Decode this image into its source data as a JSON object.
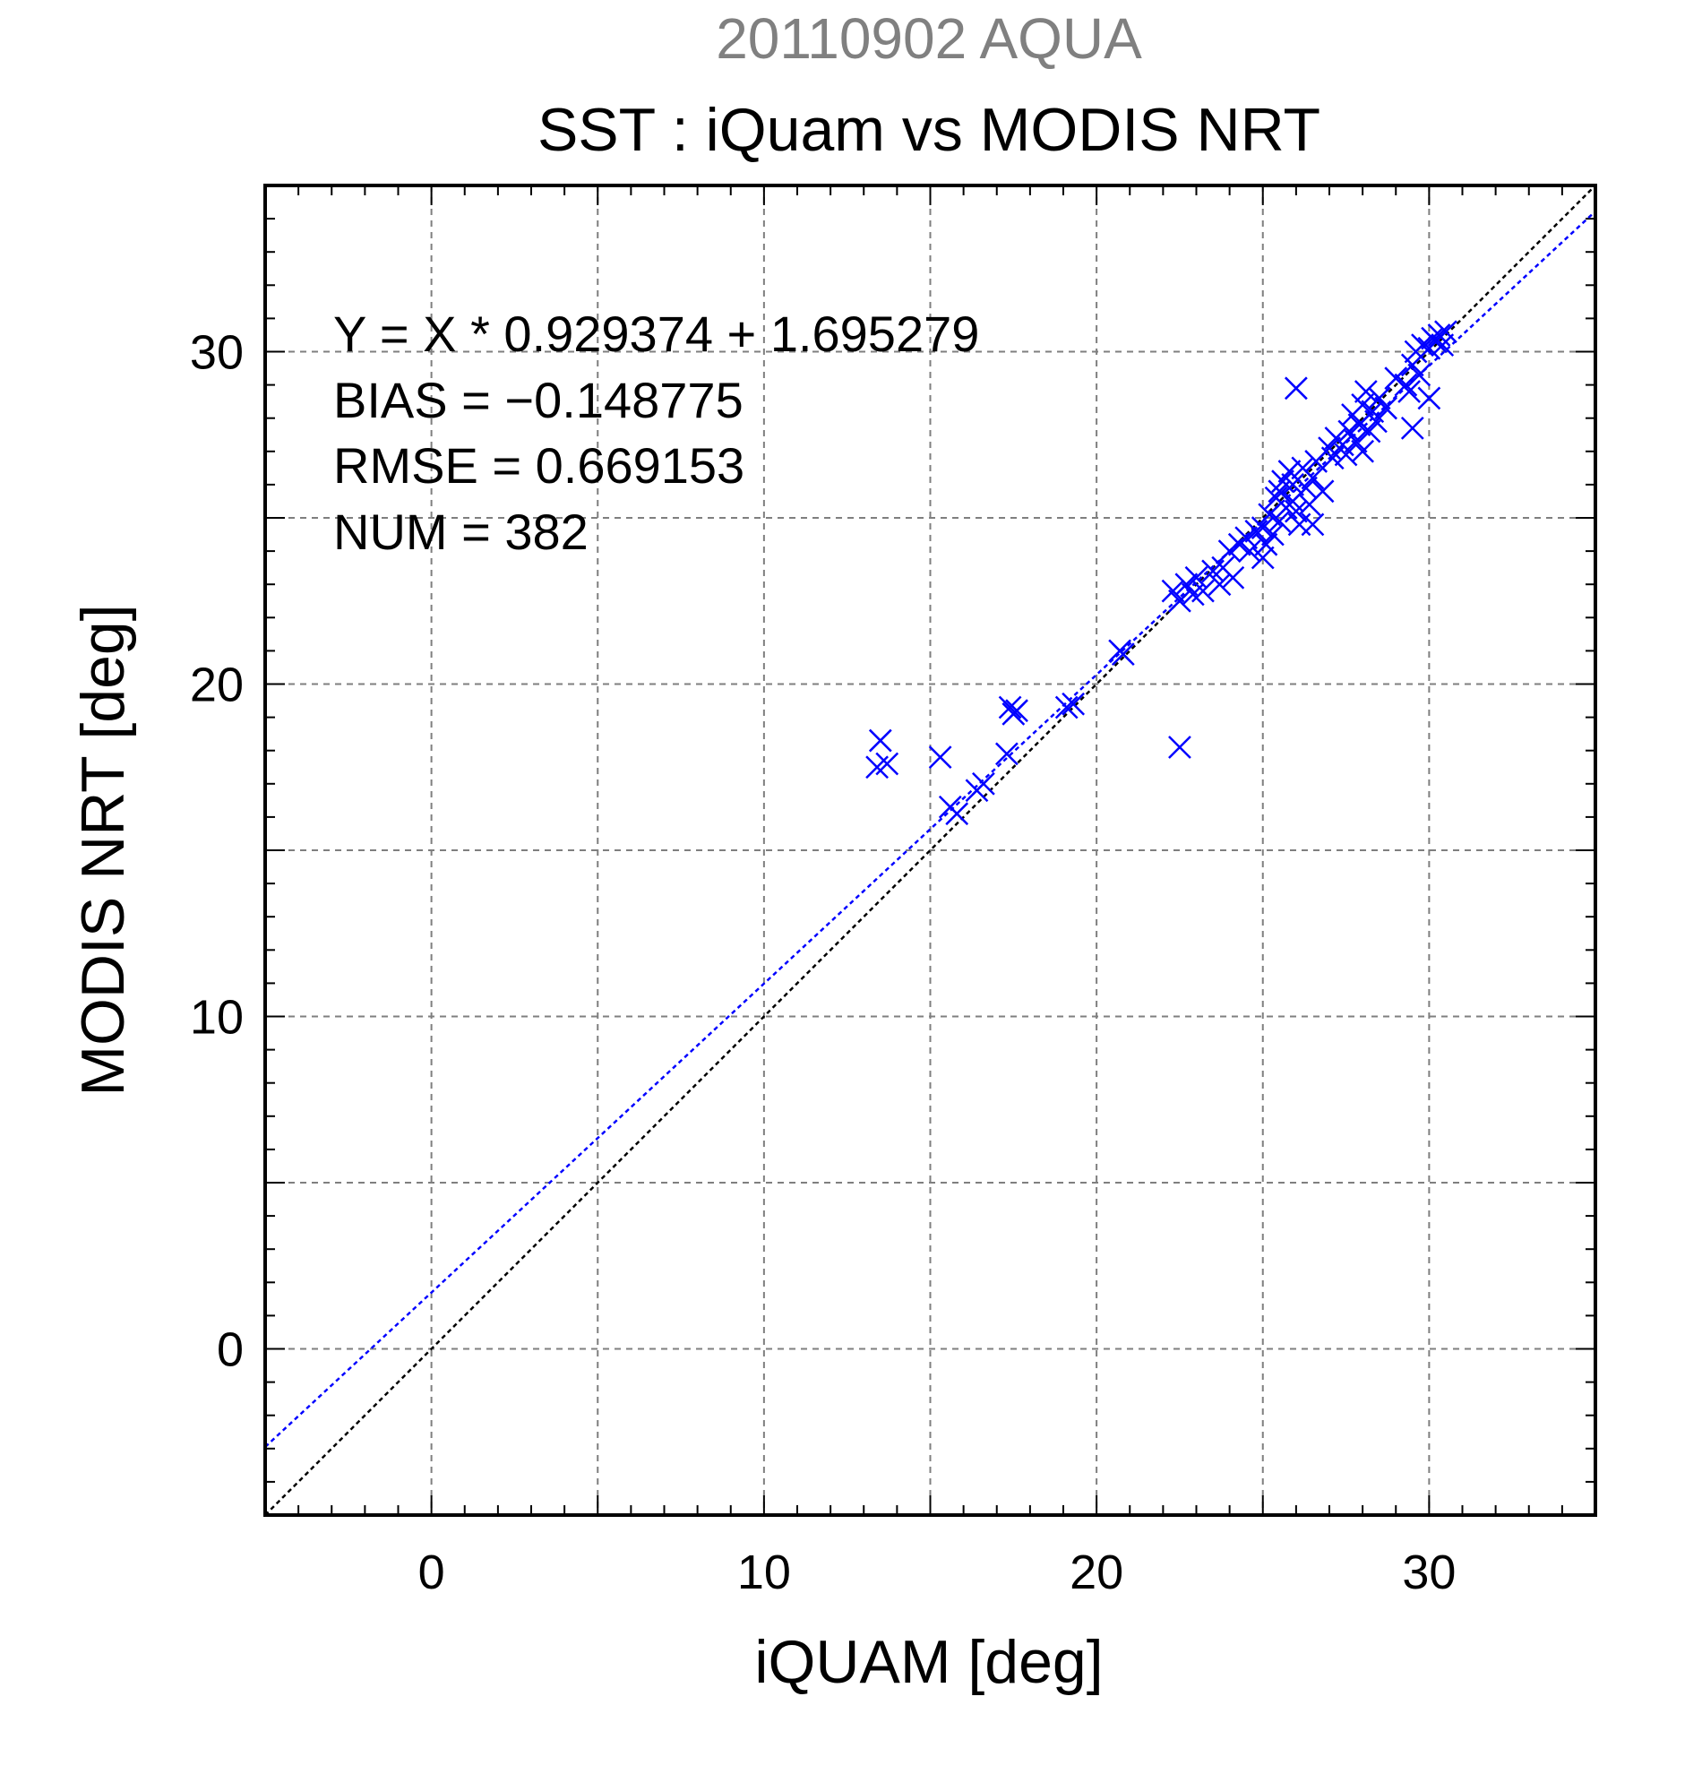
{
  "supertitle": "20110902 AQUA",
  "colors": {
    "supertitle": "#808080",
    "text": "#000000",
    "points": "#0000ff",
    "fit_line": "#0000ff",
    "identity_line": "#000000",
    "grid": "#7f7f7f"
  },
  "chart_data": {
    "type": "scatter",
    "title": "SST : iQuam vs MODIS NRT",
    "xlabel": "iQUAM [deg]",
    "ylabel": "MODIS NRT [deg]",
    "xlim": [
      -5,
      35
    ],
    "ylim": [
      -5,
      35
    ],
    "xticks": [
      0,
      10,
      20,
      30
    ],
    "yticks": [
      0,
      10,
      20,
      30
    ],
    "grid": true,
    "marker": "x",
    "stats": [
      "Y = X * 0.929374 + 1.695279",
      "BIAS = −0.148775",
      "RMSE = 0.669153",
      "NUM = 382"
    ],
    "fit_line": {
      "slope": 0.929374,
      "intercept": 1.695279
    },
    "identity_line": {
      "slope": 1,
      "intercept": 0
    },
    "points": [
      [
        13.5,
        18.3
      ],
      [
        13.4,
        17.5
      ],
      [
        13.7,
        17.6
      ],
      [
        15.3,
        17.8
      ],
      [
        15.6,
        16.3
      ],
      [
        15.8,
        16.1
      ],
      [
        16.4,
        16.8
      ],
      [
        16.6,
        17.0
      ],
      [
        17.3,
        17.9
      ],
      [
        17.4,
        19.3
      ],
      [
        17.6,
        19.2
      ],
      [
        17.5,
        19.1
      ],
      [
        19.1,
        19.3
      ],
      [
        19.3,
        19.4
      ],
      [
        20.7,
        21.0
      ],
      [
        20.8,
        20.9
      ],
      [
        22.5,
        18.1
      ],
      [
        22.3,
        22.8
      ],
      [
        22.5,
        22.5
      ],
      [
        22.7,
        23.0
      ],
      [
        22.9,
        22.7
      ],
      [
        23.0,
        23.2
      ],
      [
        23.2,
        22.8
      ],
      [
        23.5,
        23.4
      ],
      [
        23.7,
        23.0
      ],
      [
        23.8,
        23.5
      ],
      [
        24.0,
        24.0
      ],
      [
        24.1,
        23.2
      ],
      [
        24.3,
        24.2
      ],
      [
        24.5,
        24.4
      ],
      [
        24.6,
        24.0
      ],
      [
        24.8,
        24.6
      ],
      [
        25.0,
        24.7
      ],
      [
        25.0,
        23.8
      ],
      [
        25.1,
        24.2
      ],
      [
        25.2,
        25.1
      ],
      [
        25.3,
        24.5
      ],
      [
        25.4,
        25.6
      ],
      [
        25.5,
        25.8
      ],
      [
        25.5,
        24.9
      ],
      [
        25.6,
        26.1
      ],
      [
        25.7,
        25.3
      ],
      [
        25.8,
        26.4
      ],
      [
        25.9,
        25.5
      ],
      [
        25.9,
        26.0
      ],
      [
        26.0,
        25.2
      ],
      [
        26.0,
        28.9
      ],
      [
        26.1,
        24.8
      ],
      [
        26.2,
        26.5
      ],
      [
        26.3,
        25.9
      ],
      [
        26.4,
        25.4
      ],
      [
        26.5,
        26.2
      ],
      [
        26.5,
        24.8
      ],
      [
        26.6,
        26.7
      ],
      [
        26.8,
        25.8
      ],
      [
        27.0,
        27.1
      ],
      [
        27.1,
        26.8
      ],
      [
        27.2,
        27.4
      ],
      [
        27.4,
        27.2
      ],
      [
        27.5,
        26.9
      ],
      [
        27.6,
        27.6
      ],
      [
        27.7,
        28.1
      ],
      [
        27.8,
        27.3
      ],
      [
        27.9,
        27.8
      ],
      [
        28.0,
        28.4
      ],
      [
        28.0,
        27.0
      ],
      [
        28.1,
        28.8
      ],
      [
        28.2,
        27.6
      ],
      [
        28.3,
        28.2
      ],
      [
        28.4,
        27.9
      ],
      [
        28.5,
        28.6
      ],
      [
        28.7,
        28.3
      ],
      [
        29.0,
        29.2
      ],
      [
        29.3,
        29.0
      ],
      [
        29.4,
        28.8
      ],
      [
        29.5,
        29.6
      ],
      [
        29.5,
        27.7
      ],
      [
        29.6,
        30.0
      ],
      [
        29.7,
        29.3
      ],
      [
        29.8,
        30.2
      ],
      [
        30.0,
        30.1
      ],
      [
        30.0,
        28.6
      ],
      [
        30.1,
        30.4
      ],
      [
        30.2,
        30.3
      ],
      [
        30.3,
        30.5
      ],
      [
        30.4,
        30.2
      ],
      [
        30.5,
        30.6
      ]
    ]
  }
}
